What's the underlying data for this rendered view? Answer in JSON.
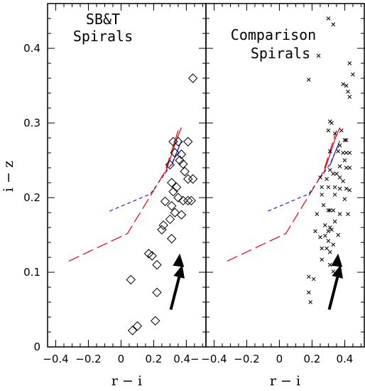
{
  "chart_data": [
    {
      "type": "scatter",
      "title_lines": [
        "SB&T",
        "Spirals"
      ],
      "xlabel": "r − i",
      "ylabel": "i − z",
      "xlim": [
        -0.45,
        0.52
      ],
      "ylim": [
        0.0,
        0.46
      ],
      "xticks": [
        -0.4,
        -0.2,
        0,
        0.2,
        0.4
      ],
      "xtick_labels": [
        "−0.4",
        "−0.2",
        "0",
        "0.2",
        "0.4−"
      ],
      "yticks": [
        0,
        0.1,
        0.2,
        0.3,
        0.4
      ],
      "ytick_labels": [
        "0",
        "0.1",
        "0.2",
        "0.3",
        "0.4"
      ],
      "grid": false,
      "marker": "diamond",
      "points": [
        [
          0.44,
          0.36
        ],
        [
          0.32,
          0.275
        ],
        [
          0.35,
          0.275
        ],
        [
          0.41,
          0.275
        ],
        [
          0.33,
          0.26
        ],
        [
          0.37,
          0.258
        ],
        [
          0.36,
          0.25
        ],
        [
          0.38,
          0.245
        ],
        [
          0.3,
          0.244
        ],
        [
          0.39,
          0.235
        ],
        [
          0.41,
          0.225
        ],
        [
          0.44,
          0.225
        ],
        [
          0.31,
          0.22
        ],
        [
          0.34,
          0.214
        ],
        [
          0.32,
          0.208
        ],
        [
          0.35,
          0.2
        ],
        [
          0.38,
          0.196
        ],
        [
          0.41,
          0.196
        ],
        [
          0.43,
          0.196
        ],
        [
          0.27,
          0.195
        ],
        [
          0.31,
          0.189
        ],
        [
          0.33,
          0.18
        ],
        [
          0.37,
          0.177
        ],
        [
          0.3,
          0.171
        ],
        [
          0.26,
          0.163
        ],
        [
          0.25,
          0.157
        ],
        [
          0.31,
          0.145
        ],
        [
          0.17,
          0.125
        ],
        [
          0.19,
          0.122
        ],
        [
          0.22,
          0.11
        ],
        [
          0.06,
          0.09
        ],
        [
          0.22,
          0.073
        ],
        [
          0.21,
          0.035
        ],
        [
          0.1,
          0.028
        ],
        [
          0.07,
          0.022
        ]
      ],
      "series": [
        {
          "style": "blue-dashed",
          "x": [
            -0.07,
            0.18,
            0.31,
            0.36
          ],
          "y": [
            0.182,
            0.205,
            0.245,
            0.27
          ]
        },
        {
          "style": "red-long-dash",
          "x": [
            -0.32,
            0.04,
            0.27,
            0.35
          ],
          "y": [
            0.115,
            0.152,
            0.235,
            0.29
          ]
        },
        {
          "style": "red-solid",
          "x": [
            0.27,
            0.31,
            0.34,
            0.37
          ],
          "y": [
            0.232,
            0.258,
            0.278,
            0.294
          ]
        },
        {
          "style": "blue-solid",
          "x": [
            0.31,
            0.34,
            0.37
          ],
          "y": [
            0.243,
            0.26,
            0.276
          ]
        }
      ],
      "arrows": [
        {
          "x_from": 0.305,
          "y_from": 0.05,
          "x_to": 0.375,
          "y_to": 0.11
        },
        {
          "x_from": 0.355,
          "y_from": 0.115,
          "x_to": 0.36,
          "y_to": 0.125
        }
      ]
    },
    {
      "type": "scatter",
      "title_lines": [
        "Comparison",
        "Spirals"
      ],
      "xlabel": "r − i",
      "ylabel": "",
      "xlim": [
        -0.45,
        0.52
      ],
      "ylim": [
        0.0,
        0.46
      ],
      "xticks": [
        -0.4,
        -0.2,
        0,
        0.2,
        0.4
      ],
      "xtick_labels": [
        "−0.4",
        "−0.2",
        "0",
        "0.2",
        "0.4"
      ],
      "yticks": [
        0,
        0.1,
        0.2,
        0.3,
        0.4
      ],
      "grid": false,
      "marker": "x",
      "points": [
        [
          0.3,
          0.44
        ],
        [
          0.33,
          0.432
        ],
        [
          0.24,
          0.39
        ],
        [
          0.43,
          0.38
        ],
        [
          0.45,
          0.365
        ],
        [
          0.39,
          0.352
        ],
        [
          0.41,
          0.35
        ],
        [
          0.42,
          0.342
        ],
        [
          0.43,
          0.335
        ],
        [
          0.18,
          0.358
        ],
        [
          0.31,
          0.302
        ],
        [
          0.32,
          0.3
        ],
        [
          0.3,
          0.29
        ],
        [
          0.34,
          0.286
        ],
        [
          0.38,
          0.29
        ],
        [
          0.4,
          0.277
        ],
        [
          0.41,
          0.277
        ],
        [
          0.37,
          0.27
        ],
        [
          0.31,
          0.262
        ],
        [
          0.36,
          0.262
        ],
        [
          0.39,
          0.26
        ],
        [
          0.41,
          0.26
        ],
        [
          0.43,
          0.26
        ],
        [
          0.4,
          0.25
        ],
        [
          0.37,
          0.242
        ],
        [
          0.41,
          0.24
        ],
        [
          0.43,
          0.24
        ],
        [
          0.31,
          0.237
        ],
        [
          0.33,
          0.232
        ],
        [
          0.35,
          0.232
        ],
        [
          0.37,
          0.227
        ],
        [
          0.25,
          0.227
        ],
        [
          0.29,
          0.225
        ],
        [
          0.39,
          0.222
        ],
        [
          0.26,
          0.214
        ],
        [
          0.34,
          0.214
        ],
        [
          0.3,
          0.214
        ],
        [
          0.37,
          0.212
        ],
        [
          0.41,
          0.212
        ],
        [
          0.43,
          0.21
        ],
        [
          0.26,
          0.204
        ],
        [
          0.34,
          0.204
        ],
        [
          0.4,
          0.198
        ],
        [
          0.27,
          0.19
        ],
        [
          0.3,
          0.183
        ],
        [
          0.31,
          0.183
        ],
        [
          0.33,
          0.183
        ],
        [
          0.23,
          0.178
        ],
        [
          0.37,
          0.178
        ],
        [
          0.42,
          0.178
        ],
        [
          0.34,
          0.168
        ],
        [
          0.28,
          0.163
        ],
        [
          0.31,
          0.16
        ],
        [
          0.32,
          0.157
        ],
        [
          0.22,
          0.155
        ],
        [
          0.3,
          0.155
        ],
        [
          0.28,
          0.149
        ],
        [
          0.36,
          0.15
        ],
        [
          0.25,
          0.147
        ],
        [
          0.3,
          0.142
        ],
        [
          0.33,
          0.137
        ],
        [
          0.26,
          0.132
        ],
        [
          0.29,
          0.132
        ],
        [
          0.31,
          0.127
        ],
        [
          0.26,
          0.117
        ],
        [
          0.31,
          0.11
        ],
        [
          0.33,
          0.101
        ],
        [
          0.18,
          0.094
        ],
        [
          0.21,
          0.091
        ],
        [
          0.18,
          0.073
        ],
        [
          0.19,
          0.06
        ]
      ],
      "series": [
        {
          "style": "blue-dashed",
          "x": [
            -0.07,
            0.18,
            0.31,
            0.36
          ],
          "y": [
            0.182,
            0.205,
            0.245,
            0.27
          ]
        },
        {
          "style": "red-long-dash",
          "x": [
            -0.32,
            0.04,
            0.27,
            0.35
          ],
          "y": [
            0.115,
            0.152,
            0.235,
            0.29
          ]
        },
        {
          "style": "red-solid",
          "x": [
            0.27,
            0.31,
            0.34,
            0.37
          ],
          "y": [
            0.232,
            0.258,
            0.278,
            0.294
          ]
        },
        {
          "style": "blue-solid",
          "x": [
            0.31,
            0.34,
            0.37
          ],
          "y": [
            0.243,
            0.26,
            0.276
          ]
        }
      ],
      "arrows": [
        {
          "x_from": 0.305,
          "y_from": 0.05,
          "x_to": 0.375,
          "y_to": 0.11
        },
        {
          "x_from": 0.355,
          "y_from": 0.115,
          "x_to": 0.36,
          "y_to": 0.125
        }
      ]
    }
  ],
  "colors": {
    "axis": "#000000",
    "marker": "#000000",
    "red_line": "#e8000b",
    "blue_line": "#1f1fd6",
    "arrow": "#000000"
  }
}
